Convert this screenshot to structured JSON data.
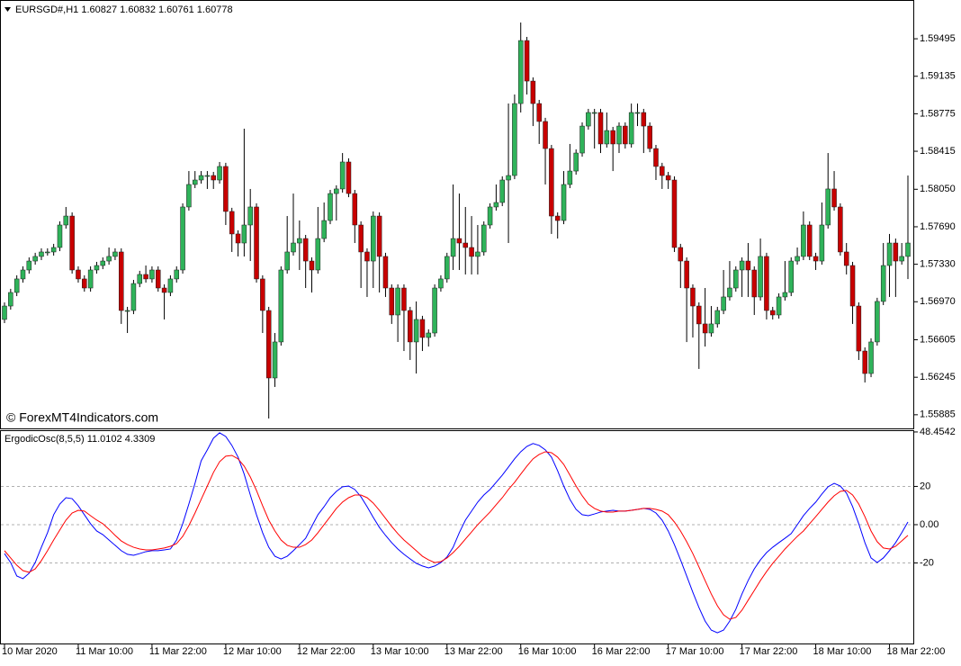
{
  "chart_data": [
    {
      "type": "candlestick",
      "title": "EURSGD#,H1  1.60827 1.60832 1.60761 1.60778",
      "annotation": "© ForexMT4Indicators.com",
      "up_color": "#2fb35a",
      "down_color": "#c80000",
      "wick_color": "#000000",
      "ylim": [
        1.55754,
        1.5985
      ],
      "yticks": [
        1.59495,
        1.59135,
        1.58775,
        1.58415,
        {
          "value": 1.5805,
          "label": "1.58050"
        },
        {
          "value": 1.5769,
          "label": "1.57690"
        },
        {
          "value": 1.5733,
          "label": "1.57330"
        },
        {
          "value": 1.5697,
          "label": "1.56970"
        },
        1.56605,
        1.56245,
        1.55885
      ],
      "categories": [
        "10 Mar 2020",
        null,
        null,
        null,
        null,
        null,
        null,
        null,
        null,
        null,
        null,
        null,
        "11 Mar 10:00",
        null,
        null,
        null,
        null,
        null,
        null,
        null,
        null,
        null,
        null,
        null,
        "11 Mar 22:00",
        null,
        null,
        null,
        null,
        null,
        null,
        null,
        null,
        null,
        null,
        null,
        "12 Mar 10:00",
        null,
        null,
        null,
        null,
        null,
        null,
        null,
        null,
        null,
        null,
        null,
        "12 Mar 22:00",
        null,
        null,
        null,
        null,
        null,
        null,
        null,
        null,
        null,
        null,
        null,
        "13 Mar 10:00",
        null,
        null,
        null,
        null,
        null,
        null,
        null,
        null,
        null,
        null,
        null,
        "13 Mar 22:00",
        null,
        null,
        null,
        null,
        null,
        null,
        null,
        null,
        null,
        null,
        null,
        "16 Mar 10:00",
        null,
        null,
        null,
        null,
        null,
        null,
        null,
        null,
        null,
        null,
        null,
        "16 Mar 22:00",
        null,
        null,
        null,
        null,
        null,
        null,
        null,
        null,
        null,
        null,
        null,
        "17 Mar 10:00",
        null,
        null,
        null,
        null,
        null,
        null,
        null,
        null,
        null,
        null,
        null,
        "17 Mar 22:00",
        null,
        null,
        null,
        null,
        null,
        null,
        null,
        null,
        null,
        null,
        null,
        "18 Mar 10:00",
        null,
        null,
        null,
        null,
        null,
        null,
        null,
        null,
        null,
        null,
        null,
        "18 Mar 22:00",
        null,
        null,
        null
      ],
      "open": [
        1.568,
        1.56929,
        1.57059,
        1.57189,
        1.57275,
        1.57361,
        1.57405,
        1.57448,
        1.57448,
        1.57491,
        1.57707,
        1.57793,
        1.57275,
        1.57189,
        1.57102,
        1.57275,
        1.57318,
        1.57361,
        1.57405,
        1.57448,
        1.56886,
        1.56886,
        1.57145,
        1.57232,
        1.57189,
        1.57275,
        1.57102,
        1.57059,
        1.57189,
        1.57275,
        1.5788,
        1.58096,
        1.58139,
        1.58182,
        1.58182,
        1.58139,
        1.58269,
        1.57837,
        1.57621,
        1.57534,
        1.57707,
        1.5788,
        1.57189,
        1.56886,
        1.56238,
        1.56584,
        1.57275,
        1.57448,
        1.57534,
        1.57577,
        1.57361,
        1.57275,
        1.57577,
        1.5775,
        1.58009,
        1.58053,
        1.58312,
        1.58009,
        1.57707,
        1.57448,
        1.57361,
        1.57793,
        1.57405,
        1.57102,
        1.56843,
        1.57102,
        1.56886,
        1.56584,
        1.568,
        1.56627,
        1.5667,
        1.57102,
        1.57189,
        1.57405,
        1.57577,
        1.57534,
        1.57491,
        1.57405,
        1.57448,
        1.57707,
        1.5788,
        1.57923,
        1.58139,
        1.58182,
        1.58873,
        1.59478,
        1.59089,
        1.58873,
        1.58701,
        1.58441,
        1.57793,
        1.5775,
        1.58096,
        1.58225,
        1.58398,
        1.58657,
        1.58787,
        1.58787,
        1.58485,
        1.58614,
        1.58485,
        1.58657,
        1.58485,
        1.58787,
        1.58787,
        1.58657,
        1.58441,
        1.58269,
        1.58182,
        1.58139,
        1.57491,
        1.57361,
        1.57102,
        1.56929,
        1.56757,
        1.5667,
        1.56757,
        1.56886,
        1.57016,
        1.57102,
        1.57275,
        1.57361,
        1.57275,
        1.57016,
        1.57405,
        1.56886,
        1.56843,
        1.57016,
        1.57059,
        1.57361,
        1.57405,
        1.57707,
        1.57405,
        1.57361,
        1.57707,
        1.58053,
        1.5788,
        1.57448,
        1.57318,
        1.56929,
        1.56497,
        1.56281,
        1.56584,
        1.56973,
        1.57318,
        1.57534,
        1.57361,
        1.57405
      ],
      "high": [
        1.56964,
        1.57094,
        1.57224,
        1.5731,
        1.57396,
        1.5744,
        1.57483,
        1.57483,
        1.57526,
        1.57742,
        1.5788,
        1.57828,
        1.5731,
        1.57224,
        1.5731,
        1.57353,
        1.57396,
        1.57491,
        1.57483,
        1.57483,
        1.56921,
        1.5718,
        1.57267,
        1.57318,
        1.5731,
        1.5731,
        1.57137,
        1.57224,
        1.5731,
        1.57915,
        1.58225,
        1.58225,
        1.58225,
        1.58225,
        1.58217,
        1.58312,
        1.58304,
        1.57872,
        1.57656,
        1.58632,
        1.58053,
        1.57915,
        1.57224,
        1.56921,
        1.5667,
        1.5731,
        1.57793,
        1.58009,
        1.5775,
        1.57612,
        1.57396,
        1.5788,
        1.57923,
        1.58044,
        1.58088,
        1.58398,
        1.58347,
        1.58044,
        1.57742,
        1.57483,
        1.57837,
        1.57828,
        1.5744,
        1.57137,
        1.57137,
        1.57137,
        1.56921,
        1.56973,
        1.56835,
        1.56705,
        1.57137,
        1.57224,
        1.5744,
        1.58096,
        1.58009,
        1.5788,
        1.57793,
        1.57707,
        1.57742,
        1.57915,
        1.58096,
        1.58174,
        1.58873,
        1.5896,
        1.59651,
        1.59513,
        1.59124,
        1.58908,
        1.58736,
        1.58476,
        1.57828,
        1.58225,
        1.58485,
        1.58433,
        1.58692,
        1.58822,
        1.58822,
        1.58822,
        1.58787,
        1.58649,
        1.58692,
        1.58692,
        1.58873,
        1.58873,
        1.58822,
        1.58692,
        1.58476,
        1.58304,
        1.58217,
        1.58174,
        1.57526,
        1.57396,
        1.57137,
        1.56964,
        1.57102,
        1.56929,
        1.56921,
        1.57275,
        1.57361,
        1.5731,
        1.57396,
        1.57534,
        1.5731,
        1.57577,
        1.5744,
        1.56921,
        1.57051,
        1.57361,
        1.57396,
        1.57491,
        1.57837,
        1.57742,
        1.5744,
        1.57923,
        1.58398,
        1.58225,
        1.57915,
        1.57534,
        1.57353,
        1.56964,
        1.56532,
        1.56619,
        1.57008,
        1.57534,
        1.57621,
        1.57577,
        1.57534,
        1.58182
      ],
      "low": [
        1.56765,
        1.56894,
        1.57024,
        1.57154,
        1.5724,
        1.57326,
        1.5737,
        1.57413,
        1.57413,
        1.57456,
        1.57672,
        1.5724,
        1.57154,
        1.57067,
        1.57067,
        1.5724,
        1.57283,
        1.57326,
        1.5737,
        1.56757,
        1.5667,
        1.56851,
        1.5711,
        1.57154,
        1.57154,
        1.57067,
        1.568,
        1.57024,
        1.57154,
        1.5724,
        1.57845,
        1.58061,
        1.58104,
        1.58053,
        1.58053,
        1.58104,
        1.57707,
        1.57448,
        1.57405,
        1.57405,
        1.57361,
        1.57154,
        1.5667,
        1.55849,
        1.56152,
        1.56549,
        1.5724,
        1.57413,
        1.57275,
        1.57102,
        1.57059,
        1.5724,
        1.57542,
        1.57715,
        1.5775,
        1.58018,
        1.57974,
        1.57534,
        1.57102,
        1.57016,
        1.57102,
        1.57059,
        1.57016,
        1.56757,
        1.56584,
        1.56497,
        1.56411,
        1.56281,
        1.56497,
        1.5654,
        1.56635,
        1.57067,
        1.57154,
        1.57275,
        1.57275,
        1.57232,
        1.57232,
        1.57232,
        1.57413,
        1.57672,
        1.57845,
        1.57888,
        1.57534,
        1.58147,
        1.58787,
        1.5896,
        1.58657,
        1.58485,
        1.58096,
        1.57621,
        1.57577,
        1.57715,
        1.58061,
        1.5819,
        1.58363,
        1.58622,
        1.58441,
        1.58398,
        1.5845,
        1.58225,
        1.58398,
        1.58441,
        1.5845,
        1.58657,
        1.58398,
        1.58406,
        1.58139,
        1.58053,
        1.58053,
        1.57448,
        1.57102,
        1.56583,
        1.56627,
        1.56325,
        1.5654,
        1.56635,
        1.56722,
        1.56851,
        1.56981,
        1.57067,
        1.57016,
        1.57016,
        1.56843,
        1.56981,
        1.568,
        1.568,
        1.56808,
        1.56981,
        1.57024,
        1.57326,
        1.5737,
        1.5737,
        1.57275,
        1.57326,
        1.57672,
        1.57845,
        1.57413,
        1.57232,
        1.56757,
        1.56411,
        1.56195,
        1.56246,
        1.56549,
        1.56938,
        1.57016,
        1.57016,
        1.57326,
        1.57188
      ],
      "close": [
        1.56929,
        1.57059,
        1.57189,
        1.57275,
        1.57361,
        1.57405,
        1.57448,
        1.57448,
        1.57491,
        1.57707,
        1.57793,
        1.57275,
        1.57189,
        1.57102,
        1.57275,
        1.57318,
        1.57361,
        1.57405,
        1.57448,
        1.56886,
        1.56886,
        1.57145,
        1.57232,
        1.57189,
        1.57275,
        1.57102,
        1.57059,
        1.57189,
        1.57275,
        1.5788,
        1.58096,
        1.58139,
        1.58182,
        1.58182,
        1.58139,
        1.58269,
        1.57837,
        1.57621,
        1.57534,
        1.57707,
        1.5788,
        1.57189,
        1.56886,
        1.56238,
        1.56584,
        1.57275,
        1.57448,
        1.57534,
        1.57577,
        1.57361,
        1.57275,
        1.57577,
        1.5775,
        1.58009,
        1.58053,
        1.58312,
        1.58009,
        1.57707,
        1.57448,
        1.57361,
        1.57793,
        1.57405,
        1.57102,
        1.56843,
        1.57102,
        1.56886,
        1.56584,
        1.568,
        1.56627,
        1.5667,
        1.57102,
        1.57189,
        1.57405,
        1.57577,
        1.57534,
        1.57491,
        1.57405,
        1.57448,
        1.57707,
        1.5788,
        1.57923,
        1.58139,
        1.58182,
        1.58873,
        1.59478,
        1.59089,
        1.58873,
        1.58701,
        1.58441,
        1.57793,
        1.5775,
        1.58096,
        1.58225,
        1.58398,
        1.58657,
        1.58787,
        1.58787,
        1.58485,
        1.58614,
        1.58485,
        1.58657,
        1.58485,
        1.58787,
        1.58787,
        1.58657,
        1.58441,
        1.58269,
        1.58182,
        1.58139,
        1.57491,
        1.57361,
        1.57102,
        1.56929,
        1.56757,
        1.5667,
        1.56757,
        1.56886,
        1.57016,
        1.57102,
        1.57275,
        1.57361,
        1.57275,
        1.57016,
        1.57405,
        1.56886,
        1.56843,
        1.57016,
        1.57059,
        1.57361,
        1.57405,
        1.57707,
        1.57405,
        1.57361,
        1.57707,
        1.58053,
        1.5788,
        1.57448,
        1.57318,
        1.56929,
        1.56497,
        1.56281,
        1.56584,
        1.56973,
        1.57318,
        1.57534,
        1.57361,
        1.57405,
        1.57534
      ]
    },
    {
      "type": "line",
      "title": "ErgodicOsc(8,5,5) 11.0102 4.3309",
      "ylim": [
        -62.1,
        48.9
      ],
      "yticks": [
        48.4542,
        20,
        {
          "value": 0,
          "label": "0.00"
        },
        -20
      ],
      "levels": [
        20,
        0,
        -20
      ],
      "series": [
        {
          "color": "#0000ff",
          "values": [
            -15.1,
            -19.8,
            -26.8,
            -28.2,
            -25.4,
            -19.8,
            -11.8,
            -4.2,
            5.2,
            10.8,
            14.1,
            13.6,
            9.9,
            5.2,
            0.5,
            -3.3,
            -5.2,
            -8,
            -10.8,
            -13.6,
            -15.5,
            -16,
            -15.1,
            -14.1,
            -13.6,
            -13.6,
            -13.2,
            -12.7,
            -8,
            0.5,
            10.8,
            21.6,
            33.4,
            39.1,
            45.2,
            48,
            46.1,
            41.4,
            35.3,
            26.4,
            15.5,
            5.2,
            -4.2,
            -11.8,
            -16.5,
            -17.9,
            -16.5,
            -13.6,
            -10.4,
            -7.1,
            -0.9,
            5.2,
            9.4,
            14.1,
            17.4,
            19.8,
            20.2,
            18.4,
            14.6,
            9.4,
            3.8,
            -1.4,
            -5.6,
            -9.4,
            -12.7,
            -15.5,
            -17.9,
            -20.2,
            -21.6,
            -22.6,
            -21.6,
            -19.8,
            -16.9,
            -11.8,
            -4.2,
            2.4,
            7.1,
            11.8,
            15.5,
            18.4,
            22.1,
            25.9,
            30.1,
            34.4,
            38.1,
            40.9,
            42.4,
            41.4,
            39.1,
            35.3,
            28.2,
            20.2,
            13.2,
            8,
            5.2,
            4.7,
            5.6,
            6.6,
            7.1,
            7.5,
            7.1,
            7.1,
            7.5,
            8,
            8.5,
            8,
            6.1,
            2.4,
            -3.3,
            -10.4,
            -18.4,
            -26.8,
            -35.3,
            -43.3,
            -50.4,
            -55.1,
            -56.5,
            -55.1,
            -50.4,
            -44.2,
            -36.2,
            -29.2,
            -23.1,
            -18.4,
            -14.6,
            -11.8,
            -9.4,
            -7.1,
            -4.7,
            0,
            4.7,
            8.5,
            11.8,
            16,
            19.8,
            21.6,
            20.2,
            16.5,
            9.4,
            0.5,
            -9.4,
            -17.4,
            -19.8,
            -17.4,
            -13.6,
            -9.4,
            -4.2,
            1.4
          ]
        },
        {
          "color": "#ff0000",
          "values": [
            -13.6,
            -17.4,
            -21.2,
            -24,
            -24.9,
            -23.1,
            -18.8,
            -13.6,
            -8,
            -2.8,
            2.4,
            6.1,
            7.5,
            7.1,
            4.7,
            2.4,
            0.5,
            -2.4,
            -5.6,
            -8.5,
            -10.4,
            -11.8,
            -12.7,
            -13.2,
            -13.2,
            -12.7,
            -12.2,
            -11.3,
            -9.9,
            -6.1,
            -0.5,
            6.1,
            13.2,
            20.2,
            27.3,
            32.9,
            35.8,
            36.2,
            34.4,
            30.6,
            24.9,
            17.9,
            9.9,
            2.4,
            -3.3,
            -8,
            -10.8,
            -11.8,
            -11.8,
            -10.4,
            -8,
            -4.2,
            0,
            4.2,
            8.5,
            11.8,
            14.1,
            15.5,
            15.5,
            14.1,
            11.3,
            7.5,
            3.3,
            -0.9,
            -4.7,
            -8,
            -10.8,
            -13.6,
            -16.5,
            -18.4,
            -19.8,
            -19.3,
            -17.4,
            -14.6,
            -11.3,
            -7.5,
            -3.8,
            0,
            3.3,
            6.6,
            10.4,
            14.1,
            18.4,
            22.1,
            26.4,
            30.6,
            34.4,
            36.7,
            38.1,
            37.6,
            35.3,
            31.5,
            25.9,
            20.2,
            15.1,
            10.8,
            8.5,
            7.1,
            6.6,
            6.6,
            7.1,
            7.1,
            7.5,
            8,
            8.5,
            8.5,
            8,
            7.1,
            5.2,
            1.4,
            -3.3,
            -8.9,
            -15.1,
            -22.1,
            -29.2,
            -36.2,
            -42.4,
            -47.1,
            -49.4,
            -48.5,
            -44.7,
            -39.5,
            -34.4,
            -29.2,
            -24.5,
            -20.2,
            -16.5,
            -12.7,
            -9.4,
            -6.1,
            -3.3,
            0.5,
            4.2,
            8,
            11.8,
            15.1,
            17.4,
            17.9,
            15.5,
            10.8,
            4.2,
            -3.3,
            -8.9,
            -12.2,
            -12.7,
            -11.3,
            -8.5,
            -5.6
          ]
        }
      ]
    }
  ]
}
